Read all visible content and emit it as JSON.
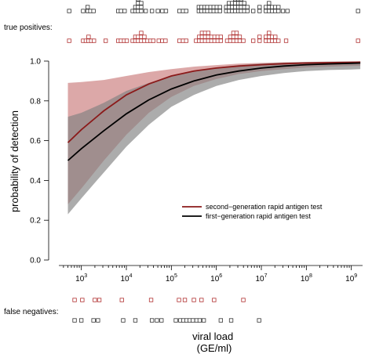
{
  "colors": {
    "second_gen": "#8b1a1a",
    "second_gen_band": "#c97a7a",
    "first_gen": "#000000",
    "first_gen_band": "#7f7f7f",
    "marker_red": "#b03030",
    "marker_black": "#333333"
  },
  "labels": {
    "true_positives": "true positives:",
    "false_negatives": "false negatives:"
  },
  "chart_data": {
    "type": "line",
    "xlabel": "viral load\n(GE/ml)",
    "ylabel": "probability of detection",
    "x_scale": "log10",
    "xlim_log10": [
      2.5,
      9.25
    ],
    "ylim": [
      0,
      1.0
    ],
    "y_ticks": [
      "0.0",
      "0.2",
      "0.4",
      "0.6",
      "0.8",
      "1.0"
    ],
    "x_ticks": [
      {
        "value": 1000,
        "mant": "10",
        "exp": "3"
      },
      {
        "value": 10000,
        "mant": "10",
        "exp": "4"
      },
      {
        "value": 100000,
        "mant": "10",
        "exp": "5"
      },
      {
        "value": 1000000,
        "mant": "10",
        "exp": "6"
      },
      {
        "value": 10000000,
        "mant": "10",
        "exp": "7"
      },
      {
        "value": 100000000,
        "mant": "10",
        "exp": "8"
      },
      {
        "value": 1000000000,
        "mant": "10",
        "exp": "9"
      }
    ],
    "legend_position": "lower-right",
    "series": [
      {
        "name": "first−generation rapid antigen test",
        "log10_x": [
          2.7,
          3.0,
          3.5,
          4.0,
          4.5,
          5.0,
          5.5,
          6.0,
          6.5,
          7.0,
          7.5,
          8.0,
          8.5,
          9.0,
          9.2
        ],
        "y": [
          0.5,
          0.56,
          0.65,
          0.735,
          0.805,
          0.86,
          0.9,
          0.93,
          0.95,
          0.965,
          0.975,
          0.982,
          0.986,
          0.989,
          0.99
        ],
        "lower": [
          0.23,
          0.31,
          0.44,
          0.57,
          0.68,
          0.77,
          0.83,
          0.875,
          0.905,
          0.925,
          0.94,
          0.95,
          0.955,
          0.958,
          0.96
        ],
        "upper": [
          0.72,
          0.74,
          0.79,
          0.85,
          0.89,
          0.925,
          0.95,
          0.968,
          0.98,
          0.987,
          0.992,
          0.995,
          0.997,
          0.998,
          0.998
        ]
      },
      {
        "name": "second−generation rapid antigen test",
        "log10_x": [
          2.7,
          3.0,
          3.5,
          4.0,
          4.5,
          5.0,
          5.5,
          6.0,
          6.5,
          7.0,
          7.5,
          8.0,
          8.5,
          9.0,
          9.2
        ],
        "y": [
          0.59,
          0.655,
          0.75,
          0.83,
          0.885,
          0.925,
          0.95,
          0.965,
          0.975,
          0.982,
          0.987,
          0.99,
          0.992,
          0.994,
          0.995
        ],
        "lower": [
          0.28,
          0.36,
          0.5,
          0.63,
          0.74,
          0.82,
          0.875,
          0.91,
          0.935,
          0.95,
          0.96,
          0.968,
          0.972,
          0.975,
          0.976
        ],
        "upper": [
          0.89,
          0.895,
          0.905,
          0.925,
          0.945,
          0.96,
          0.972,
          0.98,
          0.987,
          0.991,
          0.994,
          0.996,
          0.997,
          0.998,
          0.998
        ]
      }
    ],
    "true_positives": {
      "first_gen": [
        [
          2.73,
          1
        ],
        [
          3.04,
          1
        ],
        [
          3.14,
          2
        ],
        [
          3.2,
          1
        ],
        [
          3.27,
          1
        ],
        [
          3.82,
          1
        ],
        [
          3.88,
          1
        ],
        [
          3.96,
          1
        ],
        [
          4.14,
          1
        ],
        [
          4.2,
          2
        ],
        [
          4.26,
          4
        ],
        [
          4.33,
          3
        ],
        [
          4.43,
          1
        ],
        [
          4.57,
          1
        ],
        [
          4.7,
          1
        ],
        [
          4.8,
          1
        ],
        [
          4.88,
          1
        ],
        [
          5.18,
          1
        ],
        [
          5.26,
          1
        ],
        [
          5.33,
          1
        ],
        [
          5.61,
          2
        ],
        [
          5.67,
          2
        ],
        [
          5.74,
          2
        ],
        [
          5.8,
          2
        ],
        [
          5.87,
          2
        ],
        [
          5.94,
          2
        ],
        [
          6.01,
          2
        ],
        [
          6.08,
          2
        ],
        [
          6.22,
          2
        ],
        [
          6.28,
          3
        ],
        [
          6.35,
          3
        ],
        [
          6.42,
          4
        ],
        [
          6.49,
          4
        ],
        [
          6.55,
          4
        ],
        [
          6.62,
          3
        ],
        [
          6.69,
          2
        ],
        [
          6.82,
          1
        ],
        [
          6.96,
          2
        ],
        [
          7.1,
          2
        ],
        [
          7.17,
          3
        ],
        [
          7.24,
          2
        ],
        [
          7.31,
          2
        ],
        [
          7.38,
          2
        ],
        [
          7.48,
          1
        ],
        [
          7.58,
          1
        ],
        [
          9.15,
          1
        ]
      ],
      "second_gen": [
        [
          2.73,
          1
        ],
        [
          3.04,
          1
        ],
        [
          3.1,
          1
        ],
        [
          3.16,
          2
        ],
        [
          3.22,
          1
        ],
        [
          3.28,
          1
        ],
        [
          3.54,
          1
        ],
        [
          3.82,
          1
        ],
        [
          3.88,
          1
        ],
        [
          3.95,
          1
        ],
        [
          4.01,
          1
        ],
        [
          4.14,
          1
        ],
        [
          4.2,
          2
        ],
        [
          4.26,
          2
        ],
        [
          4.33,
          3
        ],
        [
          4.4,
          2
        ],
        [
          4.47,
          1
        ],
        [
          4.54,
          1
        ],
        [
          4.6,
          1
        ],
        [
          4.72,
          1
        ],
        [
          4.8,
          1
        ],
        [
          4.87,
          1
        ],
        [
          5.18,
          1
        ],
        [
          5.26,
          1
        ],
        [
          5.33,
          1
        ],
        [
          5.55,
          1
        ],
        [
          5.62,
          2
        ],
        [
          5.68,
          3
        ],
        [
          5.75,
          3
        ],
        [
          5.82,
          3
        ],
        [
          5.89,
          2
        ],
        [
          5.96,
          2
        ],
        [
          6.03,
          2
        ],
        [
          6.1,
          2
        ],
        [
          6.24,
          1
        ],
        [
          6.31,
          2
        ],
        [
          6.38,
          3
        ],
        [
          6.45,
          3
        ],
        [
          6.52,
          2
        ],
        [
          6.6,
          1
        ],
        [
          6.82,
          1
        ],
        [
          6.96,
          2
        ],
        [
          7.1,
          2
        ],
        [
          7.17,
          3
        ],
        [
          7.24,
          2
        ],
        [
          7.31,
          2
        ],
        [
          7.38,
          1
        ],
        [
          7.55,
          1
        ],
        [
          9.15,
          1
        ]
      ]
    },
    "false_negatives": {
      "second_gen": [
        2.85,
        3.02,
        3.3,
        3.4,
        3.9,
        4.55,
        5.17,
        5.3,
        5.5,
        5.67,
        5.95,
        6.6
      ],
      "first_gen": [
        2.85,
        3.0,
        3.27,
        3.37,
        3.93,
        4.2,
        4.57,
        4.68,
        4.78,
        5.1,
        5.2,
        5.27,
        5.34,
        5.41,
        5.48,
        5.56,
        5.63,
        5.72,
        6.1,
        6.33,
        6.95
      ]
    }
  }
}
